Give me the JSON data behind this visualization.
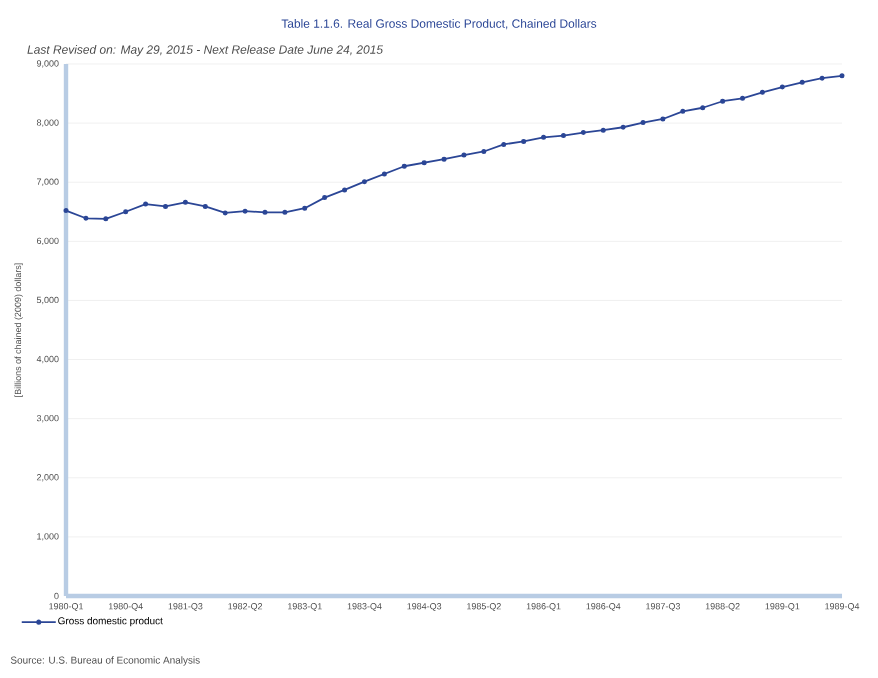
{
  "chart_data": {
    "type": "line",
    "title": "Table 1.1.6. Real Gross Domestic Product, Chained Dollars",
    "subtitle": "Last Revised on: May 29, 2015 - Next Release Date June 24, 2015",
    "ylabel": "[Billions of chained (2009) dollars]",
    "annotations": [
      "Source: U.S. Bureau of Economic Analysis"
    ],
    "categories": [
      "1980-Q1",
      null,
      null,
      "1980-Q4",
      null,
      null,
      "1981-Q3",
      null,
      null,
      "1982-Q2",
      null,
      null,
      "1983-Q1",
      null,
      null,
      "1983-Q4",
      null,
      null,
      "1984-Q3",
      null,
      null,
      "1985-Q2",
      null,
      null,
      "1986-Q1",
      null,
      null,
      "1986-Q4",
      null,
      null,
      "1987-Q3",
      null,
      null,
      "1988-Q2",
      null,
      null,
      "1989-Q1",
      null,
      null,
      "1989-Q4"
    ],
    "series": [
      {
        "name": "Gross domestic product",
        "color": "#2b4696",
        "values": [
          6520,
          6390,
          6380,
          6500,
          6630,
          6590,
          6660,
          6590,
          6480,
          6510,
          6490,
          6490,
          6560,
          6740,
          6870,
          7010,
          7140,
          7270,
          7330,
          7390,
          7460,
          7520,
          7640,
          7690,
          7760,
          7790,
          7840,
          7880,
          7930,
          8010,
          8070,
          8200,
          8260,
          8370,
          8420,
          8520,
          8610,
          8690,
          8760,
          8800
        ]
      }
    ],
    "ylim": [
      0,
      9000
    ],
    "yticks": [
      0,
      {
        "value": 1000,
        "label": "1,000"
      },
      {
        "value": 2000,
        "label": "2,000"
      },
      {
        "value": 3000,
        "label": "3,000"
      },
      {
        "value": 4000,
        "label": "4,000"
      },
      {
        "value": 5000,
        "label": "5,000"
      },
      {
        "value": 6000,
        "label": "6,000"
      },
      {
        "value": 7000,
        "label": "7,000"
      },
      {
        "value": 8000,
        "label": "8,000"
      },
      {
        "value": 9000,
        "label": "9,000"
      }
    ],
    "grid": "y",
    "legend": "bottom left",
    "marker": "circle",
    "line_style": "solid"
  }
}
